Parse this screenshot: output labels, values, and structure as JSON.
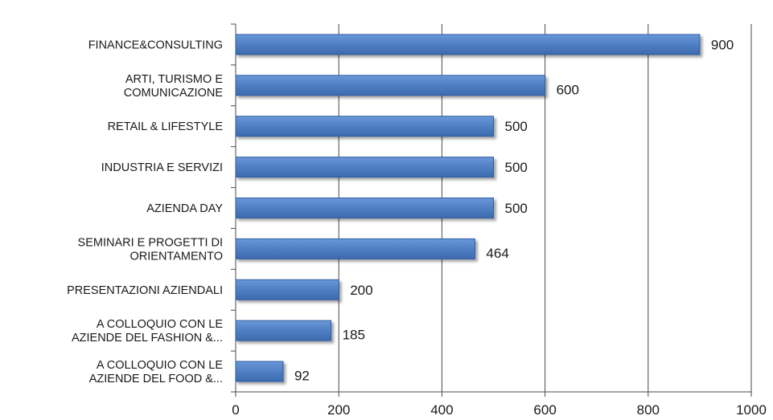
{
  "chart_data": {
    "type": "bar",
    "orientation": "horizontal",
    "title": "",
    "xlabel": "",
    "ylabel": "",
    "xlim": [
      0,
      1000
    ],
    "x_ticks": [
      0,
      200,
      400,
      600,
      800,
      1000
    ],
    "grid": true,
    "legend": "none",
    "categories": [
      [
        "FINANCE&CONSULTING"
      ],
      [
        "ARTI, TURISMO E",
        "COMUNICAZIONE"
      ],
      [
        "RETAIL & LIFESTYLE"
      ],
      [
        "INDUSTRIA E SERVIZI"
      ],
      [
        "AZIENDA DAY"
      ],
      [
        "SEMINARI E PROGETTI DI",
        "ORIENTAMENTO"
      ],
      [
        "PRESENTAZIONI AZIENDALI"
      ],
      [
        "A COLLOQUIO CON LE",
        "AZIENDE DEL FASHION &..."
      ],
      [
        "A COLLOQUIO CON LE",
        "AZIENDE DEL FOOD &..."
      ]
    ],
    "values": [
      900,
      600,
      500,
      500,
      500,
      464,
      200,
      185,
      92
    ],
    "bar_color": "#4f7fc4",
    "bar_edge_color": "#2f5d9e"
  }
}
